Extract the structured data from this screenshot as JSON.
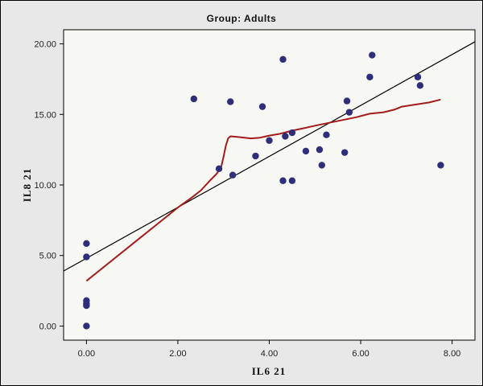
{
  "chart_data": {
    "type": "scatter",
    "title": "Group:  Adults",
    "xlabel": "IL6  21",
    "ylabel": "IL8  21",
    "xlim": [
      -0.5,
      8.5
    ],
    "ylim": [
      -1.0,
      21.0
    ],
    "x_ticks": [
      0,
      2,
      4,
      6,
      8
    ],
    "x_tick_labels": [
      "0.00",
      "2.00",
      "4.00",
      "6.00",
      "8.00"
    ],
    "y_ticks": [
      0,
      5,
      10,
      15,
      20
    ],
    "y_tick_labels": [
      "0.00",
      "5.00",
      "10.00",
      "15.00",
      "20.00"
    ],
    "grid": false,
    "points": [
      {
        "x": 0.0,
        "y": 5.85
      },
      {
        "x": 0.0,
        "y": 4.9
      },
      {
        "x": 0.0,
        "y": 1.8
      },
      {
        "x": 0.0,
        "y": 1.6
      },
      {
        "x": 0.0,
        "y": 1.45
      },
      {
        "x": 0.0,
        "y": 0.0
      },
      {
        "x": 2.35,
        "y": 16.1
      },
      {
        "x": 2.9,
        "y": 11.15
      },
      {
        "x": 3.15,
        "y": 15.9
      },
      {
        "x": 3.2,
        "y": 10.7
      },
      {
        "x": 3.7,
        "y": 12.05
      },
      {
        "x": 3.85,
        "y": 15.55
      },
      {
        "x": 4.0,
        "y": 13.15
      },
      {
        "x": 4.3,
        "y": 18.9
      },
      {
        "x": 4.3,
        "y": 10.3
      },
      {
        "x": 4.35,
        "y": 13.45
      },
      {
        "x": 4.5,
        "y": 10.3
      },
      {
        "x": 4.5,
        "y": 13.7
      },
      {
        "x": 4.8,
        "y": 12.4
      },
      {
        "x": 5.1,
        "y": 12.5
      },
      {
        "x": 5.15,
        "y": 11.4
      },
      {
        "x": 5.25,
        "y": 13.55
      },
      {
        "x": 5.65,
        "y": 12.3
      },
      {
        "x": 5.7,
        "y": 15.95
      },
      {
        "x": 5.75,
        "y": 15.15
      },
      {
        "x": 6.2,
        "y": 17.65
      },
      {
        "x": 6.25,
        "y": 19.2
      },
      {
        "x": 7.25,
        "y": 17.65
      },
      {
        "x": 7.3,
        "y": 17.05
      },
      {
        "x": 7.75,
        "y": 11.4
      }
    ],
    "fit_line": {
      "x": [
        -0.5,
        8.5
      ],
      "y": [
        3.9,
        20.15
      ]
    },
    "loess": {
      "x": [
        0.0,
        0.5,
        1.0,
        1.5,
        2.0,
        2.3,
        2.5,
        2.7,
        2.85,
        2.95,
        3.0,
        3.05,
        3.1,
        3.15,
        3.3,
        3.6,
        3.8,
        4.0,
        4.2,
        4.5,
        4.8,
        5.0,
        5.3,
        5.6,
        5.9,
        6.2,
        6.5,
        6.75,
        6.9,
        7.2,
        7.5,
        7.75
      ],
      "y": [
        3.2,
        4.5,
        5.8,
        7.1,
        8.4,
        9.1,
        9.6,
        10.3,
        10.8,
        11.3,
        12.0,
        12.8,
        13.3,
        13.45,
        13.4,
        13.3,
        13.35,
        13.5,
        13.6,
        13.85,
        14.05,
        14.2,
        14.4,
        14.6,
        14.8,
        15.05,
        15.15,
        15.35,
        15.55,
        15.7,
        15.85,
        16.05
      ]
    },
    "colors": {
      "plot_background": "#f7f7f4",
      "frame_background": "#e8e8e8",
      "points": "#2e2e7a",
      "fit_line": "#000000",
      "loess": "#a31b1b"
    }
  }
}
